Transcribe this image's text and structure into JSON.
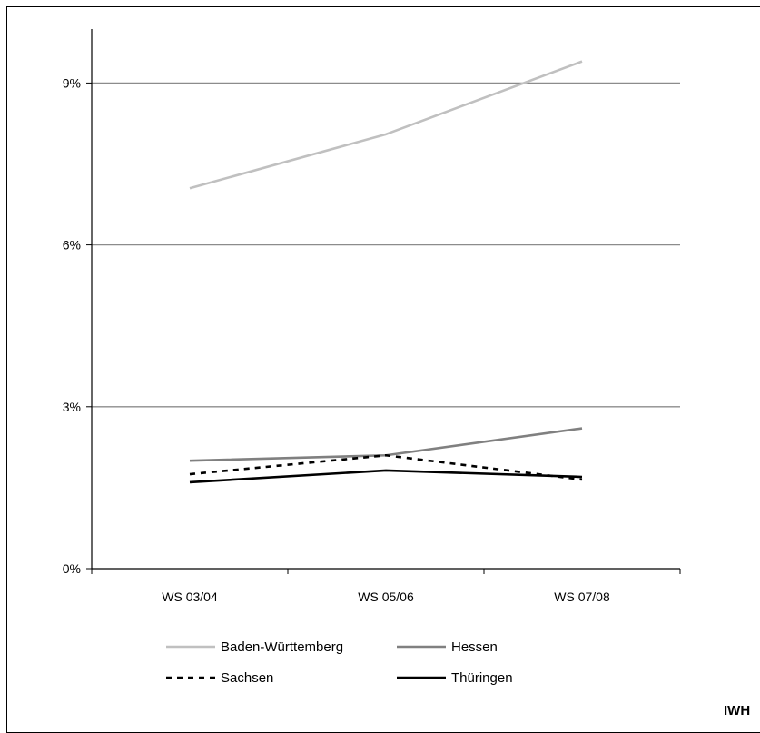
{
  "chart_data": {
    "type": "line",
    "categories": [
      "WS 03/04",
      "WS 05/06",
      "WS 07/08"
    ],
    "y_ticks": [
      "0%",
      "3%",
      "6%",
      "9%"
    ],
    "y_tick_values": [
      0,
      3,
      6,
      9
    ],
    "ylim": [
      0,
      10
    ],
    "grid": "horizontal",
    "legend_position": "bottom",
    "series": [
      {
        "name": "Baden-Württemberg",
        "values": [
          7.05,
          8.05,
          9.4
        ],
        "color": "#c0c0c0",
        "dash": "solid"
      },
      {
        "name": "Hessen",
        "values": [
          2.0,
          2.1,
          2.6
        ],
        "color": "#808080",
        "dash": "solid"
      },
      {
        "name": "Sachsen",
        "values": [
          1.75,
          2.1,
          1.65
        ],
        "color": "#000000",
        "dash": "dashed"
      },
      {
        "name": "Thüringen",
        "values": [
          1.6,
          1.82,
          1.7
        ],
        "color": "#000000",
        "dash": "solid"
      }
    ]
  },
  "source": "IWH"
}
